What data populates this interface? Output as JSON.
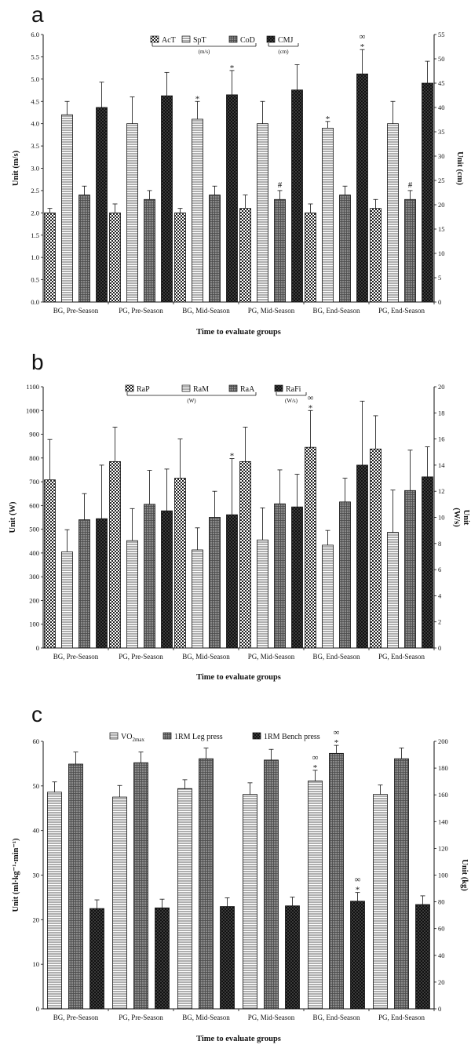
{
  "chart_data": [
    {
      "type": "bar",
      "panel": "a",
      "categories": [
        "BG, Pre-Season",
        "PG, Pre-Season",
        "BG, Mid-Season",
        "PG, Mid-Season",
        "BG, End-Season",
        "PG, End-Season"
      ],
      "xlabel": "Time to evaluate groups",
      "ylabel": "Unit (m/s)",
      "ylabel_right": "Unit (cm)",
      "ylim": [
        0,
        6.0
      ],
      "yticks": [
        "0.0",
        "0.5",
        "1.0",
        "1.5",
        "2.0",
        "2.5",
        "3.0",
        "3.5",
        "4.0",
        "4.5",
        "5.0",
        "5.5",
        "6.0"
      ],
      "ylim_right": [
        0,
        55
      ],
      "yticks_right": [
        "0",
        "5",
        "10",
        "15",
        "20",
        "25",
        "30",
        "35",
        "40",
        "45",
        "50",
        "55"
      ],
      "legend_groups": [
        {
          "label": "(m/s)",
          "members": [
            0,
            1,
            2
          ]
        },
        {
          "label": "(cm)",
          "members": [
            3
          ]
        }
      ],
      "series": [
        {
          "name": "AcT",
          "axis": "left",
          "pattern": "checker",
          "values": [
            2.0,
            2.0,
            2.0,
            2.1,
            2.0,
            2.1
          ],
          "errors": [
            0.1,
            0.2,
            0.1,
            0.3,
            0.2,
            0.2
          ],
          "marks": [
            "",
            "",
            "",
            "",
            "",
            ""
          ]
        },
        {
          "name": "SpT",
          "axis": "left",
          "pattern": "hlines",
          "values": [
            4.2,
            4.0,
            4.1,
            4.0,
            3.9,
            4.0
          ],
          "errors": [
            0.3,
            0.6,
            0.4,
            0.5,
            0.15,
            0.5
          ],
          "marks": [
            "",
            "",
            "*",
            "",
            "*",
            ""
          ]
        },
        {
          "name": "CoD",
          "axis": "left",
          "pattern": "grid",
          "values": [
            2.4,
            2.3,
            2.4,
            2.3,
            2.4,
            2.3
          ],
          "errors": [
            0.2,
            0.2,
            0.2,
            0.2,
            0.2,
            0.2
          ],
          "marks": [
            "",
            "",
            "",
            "#",
            "",
            "#"
          ]
        },
        {
          "name": "CMJ",
          "axis": "right",
          "pattern": "dark",
          "values": [
            40.0,
            42.4,
            42.6,
            43.6,
            46.9,
            45.0
          ],
          "errors": [
            5.2,
            4.8,
            5.0,
            5.2,
            5.0,
            4.5
          ],
          "marks": [
            "",
            "",
            "*",
            "",
            "∞\n*",
            ""
          ]
        }
      ]
    },
    {
      "type": "bar",
      "panel": "b",
      "categories": [
        "BG, Pre-Season",
        "PG, Pre-Season",
        "BG, Mid-Season",
        "PG, Mid-Season",
        "BG, End-Season",
        "PG, End-Season"
      ],
      "xlabel": "Time to evaluate groups",
      "ylabel": "Unit (W)",
      "ylabel_right": "Unit\n(W/s)",
      "ylim": [
        0,
        1100
      ],
      "yticks": [
        "0",
        "100",
        "200",
        "300",
        "400",
        "500",
        "600",
        "700",
        "800",
        "900",
        "1000",
        "1100"
      ],
      "ylim_right": [
        0,
        20
      ],
      "yticks_right": [
        "0",
        "2",
        "4",
        "6",
        "8",
        "10",
        "12",
        "14",
        "16",
        "18",
        "20"
      ],
      "legend_groups": [
        {
          "label": "(W)",
          "members": [
            0,
            1,
            2
          ]
        },
        {
          "label": "(W/s)",
          "members": [
            3
          ]
        }
      ],
      "series": [
        {
          "name": "RaP",
          "axis": "left",
          "pattern": "checker",
          "values": [
            708,
            785,
            715,
            785,
            845,
            838
          ],
          "errors": [
            170,
            145,
            165,
            145,
            155,
            140
          ],
          "marks": [
            "",
            "",
            "",
            "",
            "∞\n*",
            ""
          ]
        },
        {
          "name": "RaM",
          "axis": "left",
          "pattern": "hlines",
          "values": [
            405,
            452,
            413,
            455,
            433,
            487
          ],
          "errors": [
            93,
            135,
            93,
            135,
            62,
            178
          ],
          "marks": [
            "",
            "",
            "",
            "",
            "",
            ""
          ]
        },
        {
          "name": "RaA",
          "axis": "left",
          "pattern": "grid",
          "values": [
            540,
            605,
            550,
            607,
            615,
            663
          ],
          "errors": [
            110,
            143,
            110,
            143,
            100,
            170
          ],
          "marks": [
            "",
            "",
            "",
            "",
            "",
            ""
          ]
        },
        {
          "name": "RaFi",
          "axis": "right",
          "pattern": "dark",
          "values": [
            9.9,
            10.5,
            10.2,
            10.8,
            14.0,
            13.1
          ],
          "errors": [
            4.1,
            3.2,
            4.3,
            2.5,
            4.9,
            2.3
          ],
          "marks": [
            "",
            "",
            "*",
            "",
            "",
            ""
          ]
        }
      ]
    },
    {
      "type": "bar",
      "panel": "c",
      "categories": [
        "BG, Pre-Season",
        "PG, Pre-Season",
        "BG, Mid-Season",
        "PG, Mid-Season",
        "BG, End-Season",
        "PG, End-Season"
      ],
      "xlabel": "Time to evaluate groups",
      "ylabel": "Unit (ml·kg⁻¹·min⁻¹)",
      "ylabel_right": "Unit (kg)",
      "ylim": [
        0,
        60
      ],
      "yticks": [
        "0",
        "10",
        "20",
        "30",
        "40",
        "50",
        "60"
      ],
      "ylim_right": [
        0,
        200
      ],
      "yticks_right": [
        "0",
        "20",
        "40",
        "60",
        "80",
        "100",
        "120",
        "140",
        "160",
        "180",
        "200"
      ],
      "legend_groups": [],
      "series": [
        {
          "name": "VO2max",
          "axis": "left",
          "pattern": "hlines",
          "values": [
            48.6,
            47.5,
            49.4,
            48.1,
            51.1,
            48.1
          ],
          "errors": [
            2.3,
            2.6,
            2.0,
            2.6,
            2.4,
            2.1
          ],
          "marks": [
            "",
            "",
            "",
            "",
            "∞\n*",
            ""
          ]
        },
        {
          "name": "1RM Leg press",
          "axis": "right",
          "pattern": "grid",
          "values": [
            183,
            184,
            187,
            186,
            191,
            187
          ],
          "errors": [
            9,
            8,
            8,
            8,
            6,
            8
          ],
          "marks": [
            "",
            "",
            "",
            "",
            "∞\n*",
            ""
          ]
        },
        {
          "name": "1RM Bench press",
          "axis": "right",
          "pattern": "dark",
          "values": [
            75,
            75.5,
            76.5,
            77,
            80.5,
            78
          ],
          "errors": [
            6.5,
            6.5,
            6.5,
            6.5,
            6.5,
            6.5
          ],
          "marks": [
            "",
            "",
            "",
            "",
            "∞\n*",
            ""
          ]
        }
      ]
    }
  ]
}
